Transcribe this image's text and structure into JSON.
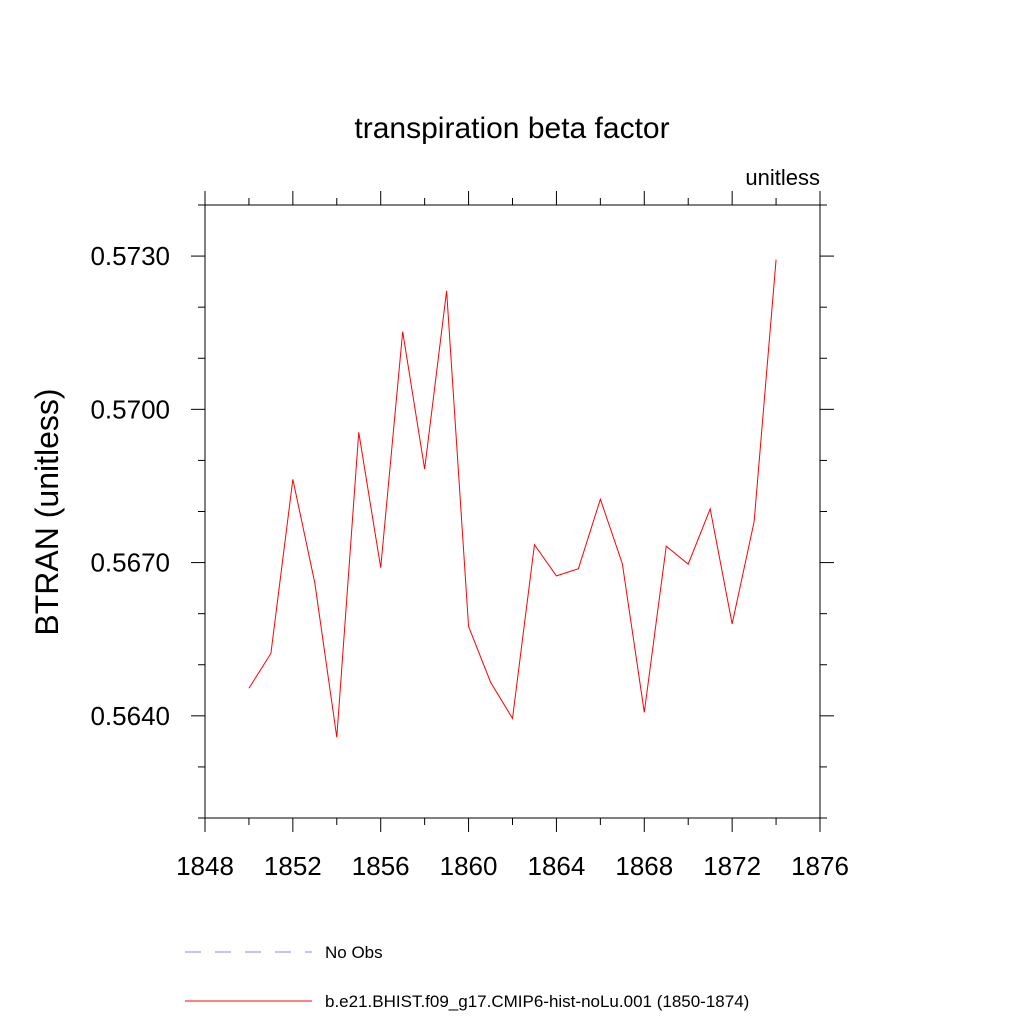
{
  "chart_data": {
    "type": "line",
    "title": "transpiration beta factor",
    "units_label": "unitless",
    "ylabel": "BTRAN  (unitless)",
    "xlabel": "",
    "xlim": [
      1848,
      1876
    ],
    "ylim": [
      0.562,
      0.574
    ],
    "x_ticks": [
      "1848",
      "1852",
      "1856",
      "1860",
      "1864",
      "1868",
      "1872",
      "1876"
    ],
    "y_ticks": [
      "0.5640",
      "0.5670",
      "0.5700",
      "0.5730"
    ],
    "grid": false,
    "series": [
      {
        "name": "b.e21.BHIST.f09_g17.CMIP6-hist-noLu.001 (1850-1874)",
        "color": "#ff0000",
        "x": [
          1850,
          1851,
          1852,
          1853,
          1854,
          1855,
          1856,
          1857,
          1858,
          1859,
          1860,
          1861,
          1862,
          1863,
          1864,
          1865,
          1866,
          1867,
          1868,
          1869,
          1870,
          1871,
          1872,
          1873,
          1874
        ],
        "y": [
          0.56454,
          0.56522,
          0.56863,
          0.5666,
          0.56358,
          0.56955,
          0.5669,
          0.57152,
          0.56883,
          0.57232,
          0.56575,
          0.56466,
          0.56395,
          0.56735,
          0.56674,
          0.56688,
          0.56824,
          0.56698,
          0.56407,
          0.56732,
          0.56697,
          0.56805,
          0.5658,
          0.5678,
          0.57293
        ]
      }
    ],
    "legend": {
      "placement": "bottom",
      "entries": [
        {
          "label": "No Obs",
          "style": "dashed",
          "color": "#8888cc"
        },
        {
          "label": "b.e21.BHIST.f09_g17.CMIP6-hist-noLu.001 (1850-1874)",
          "style": "solid",
          "color": "#ff0000"
        }
      ]
    }
  }
}
